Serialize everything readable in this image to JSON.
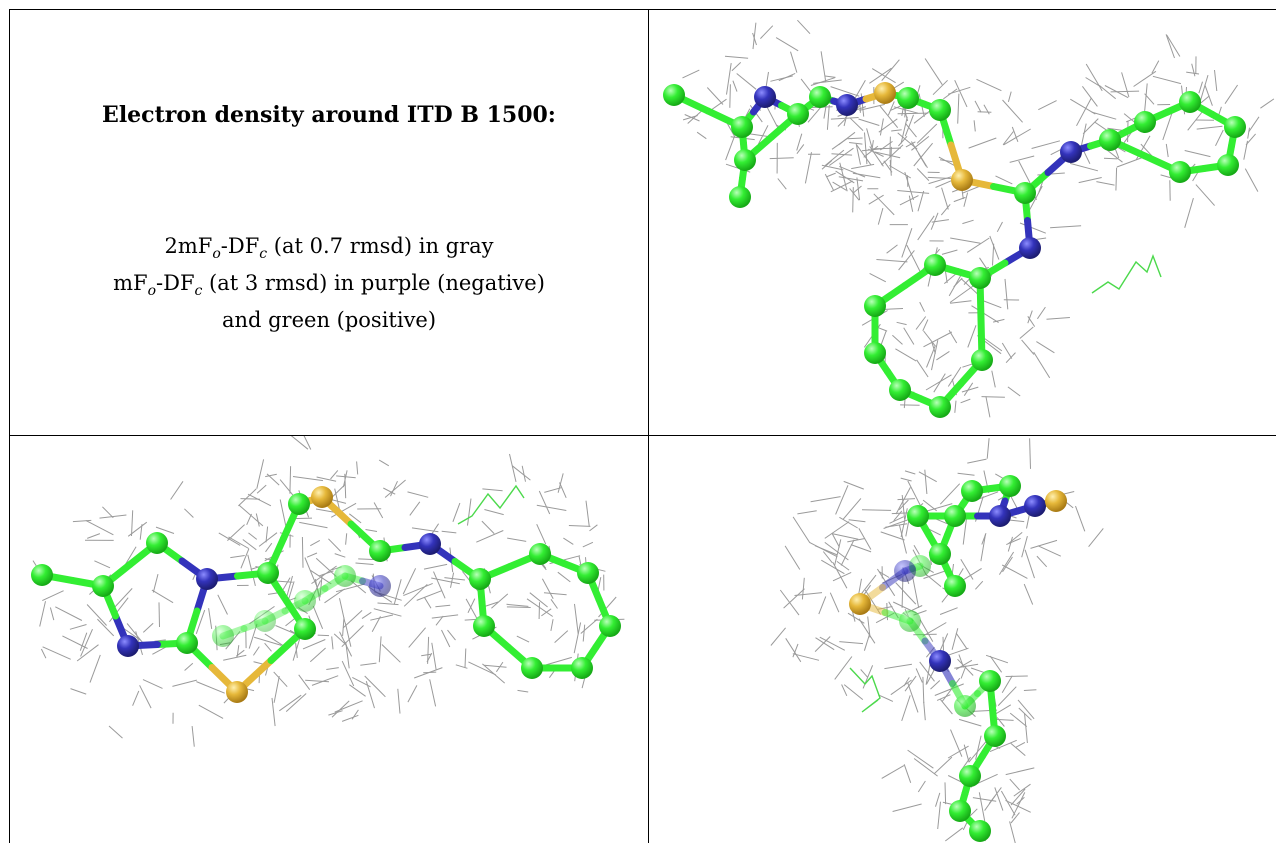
{
  "header": {
    "title": "Electron density around ITD B 1500:"
  },
  "legend": {
    "line1": {
      "prefix": "2mF",
      "sub1": "o",
      "mid": "-DF",
      "sub2": "c",
      "suffix": " (at 0.7 rmsd) in gray"
    },
    "line2": {
      "prefix": "mF",
      "sub1": "o",
      "mid": "-DF",
      "sub2": "c",
      "suffix": " (at 3 rmsd) in purple (negative)"
    },
    "line3": "and green (positive)"
  },
  "colors": {
    "carbon": "#33ee33",
    "nitrogen": "#3333bb",
    "sulfur": "#e6b83a",
    "mesh": "#9a9a9a",
    "positive_density": "#4cd94c",
    "border": "#000000"
  },
  "panels": [
    {
      "name": "view-top-right"
    },
    {
      "name": "view-bottom-left"
    },
    {
      "name": "view-bottom-right"
    }
  ]
}
